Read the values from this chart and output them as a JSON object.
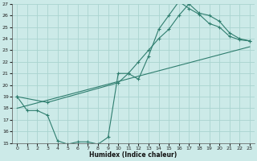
{
  "xlabel": "Humidex (Indice chaleur)",
  "bg_color": "#cceae8",
  "grid_color": "#aad4d0",
  "line_color": "#2e7d6e",
  "xlim": [
    -0.5,
    23.5
  ],
  "ylim": [
    15,
    27
  ],
  "xticks": [
    0,
    1,
    2,
    3,
    4,
    5,
    6,
    7,
    8,
    9,
    10,
    11,
    12,
    13,
    14,
    15,
    16,
    17,
    18,
    19,
    20,
    21,
    22,
    23
  ],
  "yticks": [
    15,
    16,
    17,
    18,
    19,
    20,
    21,
    22,
    23,
    24,
    25,
    26,
    27
  ],
  "line1_x": [
    0,
    1,
    2,
    3,
    4,
    5,
    6,
    7,
    8,
    9,
    10,
    11,
    12,
    13,
    14,
    15,
    16,
    17,
    18,
    19,
    20,
    21,
    22,
    23
  ],
  "line1_y": [
    19.0,
    17.8,
    17.8,
    17.4,
    15.2,
    14.9,
    15.1,
    15.1,
    14.9,
    15.5,
    21.0,
    21.0,
    20.5,
    22.5,
    24.8,
    26.0,
    27.2,
    26.6,
    26.1,
    25.3,
    25.0,
    24.2,
    23.9,
    23.8
  ],
  "line2_x": [
    0,
    3,
    10,
    11,
    12,
    13,
    14,
    15,
    16,
    17,
    18,
    19,
    20,
    21,
    22,
    23
  ],
  "line2_y": [
    19.0,
    18.5,
    20.2,
    21.0,
    22.0,
    23.0,
    24.0,
    24.8,
    26.0,
    27.0,
    26.2,
    26.0,
    25.5,
    24.5,
    24.0,
    23.8
  ],
  "line3_x": [
    0,
    23
  ],
  "line3_y": [
    18.0,
    23.3
  ]
}
